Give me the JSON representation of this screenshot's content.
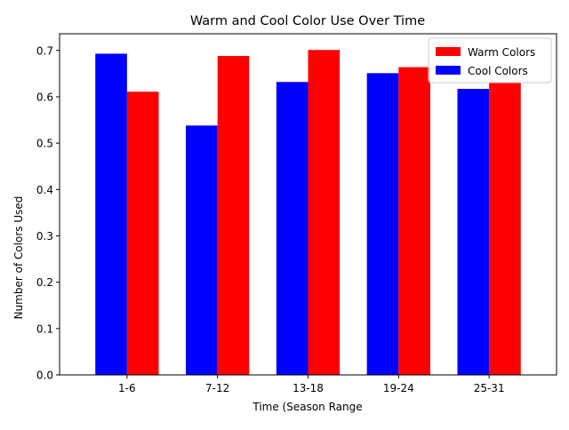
{
  "chart_data": {
    "type": "bar",
    "title": "Warm and Cool Color Use Over Time",
    "xlabel": "Time (Season Range",
    "ylabel": "Number of Colors Used",
    "categories": [
      "1-6",
      "7-12",
      "13-18",
      "19-24",
      "25-31"
    ],
    "series": [
      {
        "name": "Cool Colors",
        "color": "#0000ff",
        "values": [
          0.693,
          0.538,
          0.632,
          0.651,
          0.617
        ]
      },
      {
        "name": "Warm Colors",
        "color": "#ff0000",
        "values": [
          0.611,
          0.688,
          0.701,
          0.664,
          0.63
        ]
      }
    ],
    "legend_order": [
      "Warm Colors",
      "Cool Colors"
    ],
    "legend_position": "top-right",
    "ylim": [
      0,
      0.736
    ],
    "yticks": [
      0.0,
      0.1,
      0.2,
      0.3,
      0.4,
      0.5,
      0.6,
      0.7
    ],
    "ytick_labels": [
      "0.0",
      "0.1",
      "0.2",
      "0.3",
      "0.4",
      "0.5",
      "0.6",
      "0.7"
    ],
    "grid": false
  }
}
